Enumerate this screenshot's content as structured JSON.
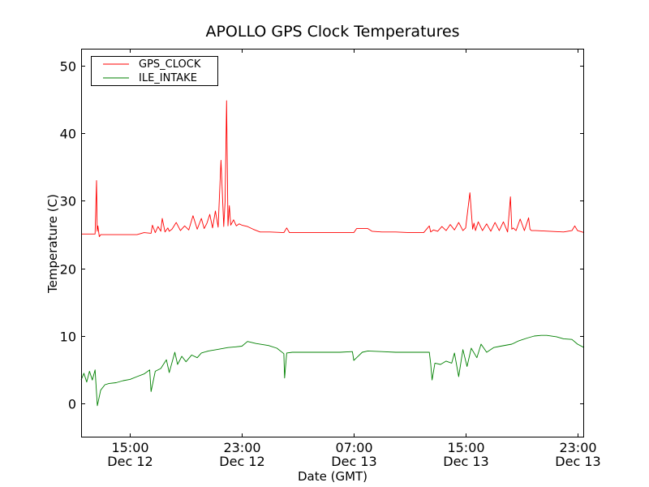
{
  "chart_data": {
    "type": "line",
    "title": "APOLLO GPS Clock Temperatures",
    "xlabel": "Date (GMT)",
    "ylabel": "Temperature (C)",
    "x_units": "hours since Dec 12 00:00 GMT",
    "xlim": [
      11.5,
      47.47
    ],
    "ylim": [
      -5,
      52.5
    ],
    "grid": false,
    "legend_placement": "top-left",
    "yticks": [
      {
        "value": 0,
        "label": "0"
      },
      {
        "value": 10,
        "label": "10"
      },
      {
        "value": 20,
        "label": "20"
      },
      {
        "value": 30,
        "label": "30"
      },
      {
        "value": 40,
        "label": "40"
      },
      {
        "value": 50,
        "label": "50"
      }
    ],
    "xticks": [
      {
        "value": 15,
        "time": "15:00",
        "date": "Dec 12"
      },
      {
        "value": 23,
        "time": "23:00",
        "date": "Dec 12"
      },
      {
        "value": 31,
        "time": "07:00",
        "date": "Dec 13"
      },
      {
        "value": 39,
        "time": "15:00",
        "date": "Dec 13"
      },
      {
        "value": 47,
        "time": "23:00",
        "date": "Dec 13"
      }
    ],
    "series": [
      {
        "name": "GPS_CLOCK",
        "color": "#ff0000",
        "x": [
          11.5,
          12.5,
          12.6,
          12.65,
          12.7,
          12.8,
          12.9,
          13.5,
          14.5,
          15.5,
          16.0,
          16.5,
          16.6,
          16.8,
          17.0,
          17.2,
          17.3,
          17.5,
          17.7,
          17.8,
          18.0,
          18.3,
          18.6,
          18.9,
          19.2,
          19.5,
          19.8,
          20.1,
          20.3,
          20.5,
          20.7,
          20.9,
          21.1,
          21.3,
          21.5,
          21.7,
          21.8,
          21.9,
          22.0,
          22.1,
          22.2,
          22.4,
          22.6,
          22.8,
          23.0,
          23.4,
          23.8,
          24.3,
          25.0,
          26.0,
          26.2,
          26.4,
          27,
          28,
          29,
          30,
          31.0,
          31.2,
          32.0,
          32.3,
          33,
          34,
          35,
          36.0,
          36.4,
          36.5,
          36.7,
          37.0,
          37.3,
          37.6,
          37.9,
          38.2,
          38.5,
          38.8,
          39.0,
          39.3,
          39.5,
          39.6,
          39.7,
          39.9,
          40.2,
          40.5,
          40.8,
          41.1,
          41.4,
          41.7,
          42.0,
          42.2,
          42.3,
          42.4,
          42.6,
          42.9,
          43.2,
          43.5,
          43.6,
          43.7,
          44,
          45,
          46,
          46.6,
          46.8,
          47.0,
          47.47
        ],
        "values": [
          25.1,
          25.1,
          33.0,
          25.5,
          26.3,
          24.7,
          25.0,
          25.0,
          25.0,
          25.0,
          25.3,
          25.2,
          26.4,
          25.3,
          26.2,
          25.5,
          27.4,
          25.4,
          26.0,
          25.5,
          25.8,
          26.8,
          25.6,
          26.3,
          25.7,
          27.8,
          25.8,
          27.4,
          25.9,
          26.7,
          28.0,
          26.0,
          28.5,
          26.1,
          36.0,
          26.2,
          30.0,
          44.8,
          26.3,
          29.3,
          26.4,
          27.2,
          26.3,
          26.6,
          26.4,
          26.2,
          25.8,
          25.4,
          25.4,
          25.3,
          26.0,
          25.3,
          25.3,
          25.3,
          25.3,
          25.3,
          25.3,
          25.9,
          25.9,
          25.5,
          25.4,
          25.4,
          25.3,
          25.3,
          26.3,
          25.4,
          25.7,
          25.5,
          26.2,
          25.6,
          26.5,
          25.7,
          26.8,
          25.6,
          26.0,
          31.2,
          25.8,
          26.7,
          25.6,
          26.9,
          25.6,
          26.6,
          25.5,
          26.8,
          25.6,
          26.9,
          25.4,
          30.6,
          25.8,
          26.0,
          25.6,
          27.3,
          25.6,
          27.5,
          25.8,
          25.6,
          25.6,
          25.5,
          25.4,
          25.6,
          26.3,
          25.6,
          25.3
        ]
      },
      {
        "name": "ILE_INTAKE",
        "color": "#008000",
        "x": [
          11.5,
          11.7,
          11.9,
          12.1,
          12.3,
          12.5,
          12.66,
          12.9,
          13.2,
          13.5,
          14.0,
          14.5,
          15.0,
          15.5,
          16.0,
          16.4,
          16.5,
          16.8,
          17.2,
          17.6,
          17.8,
          18.2,
          18.4,
          18.7,
          19.0,
          19.4,
          19.8,
          20.1,
          20.6,
          21.2,
          22.0,
          22.5,
          23.0,
          23.4,
          24.0,
          24.9,
          25.5,
          26.0,
          26.05,
          26.2,
          26.6,
          28,
          29,
          30.0,
          30.9,
          31.0,
          31.2,
          31.6,
          32.0,
          33,
          34,
          35,
          36.4,
          36.5,
          36.6,
          36.8,
          37.2,
          37.6,
          38.0,
          38.2,
          38.5,
          38.8,
          39.1,
          39.4,
          39.8,
          40.1,
          40.5,
          41.0,
          41.5,
          42.3,
          42.8,
          43.4,
          43.9,
          44.4,
          44.8,
          45.5,
          46.0,
          46.6,
          47.0,
          47.47
        ],
        "values": [
          3.5,
          4.5,
          3.2,
          4.8,
          3.5,
          5.0,
          -0.3,
          2.0,
          2.8,
          3.0,
          3.1,
          3.4,
          3.6,
          4.0,
          4.4,
          5.0,
          1.8,
          4.8,
          5.2,
          6.5,
          4.6,
          7.6,
          5.8,
          7.0,
          6.2,
          7.2,
          6.8,
          7.5,
          7.8,
          8.0,
          8.3,
          8.4,
          8.5,
          9.2,
          8.9,
          8.6,
          8.2,
          7.4,
          3.8,
          7.5,
          7.6,
          7.6,
          7.6,
          7.6,
          7.7,
          6.4,
          6.8,
          7.6,
          7.8,
          7.7,
          7.6,
          7.6,
          7.6,
          5.9,
          3.5,
          6.0,
          5.8,
          6.3,
          6.0,
          7.5,
          4.0,
          8.0,
          5.5,
          8.2,
          6.8,
          8.8,
          7.6,
          8.3,
          8.5,
          8.8,
          9.3,
          9.7,
          10.0,
          10.1,
          10.1,
          9.9,
          9.6,
          9.5,
          8.8,
          8.3
        ]
      }
    ]
  }
}
